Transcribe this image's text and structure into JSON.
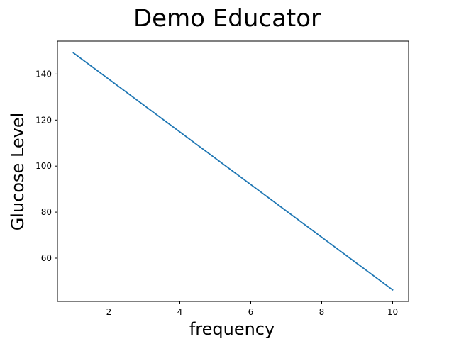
{
  "chart_data": {
    "type": "line",
    "title": "Demo Educator",
    "xlabel": "frequency",
    "ylabel": "Glucose Level",
    "xlim": [
      0.55,
      10.45
    ],
    "ylim": [
      41.2,
      154.3
    ],
    "xticks": [
      2,
      4,
      6,
      8,
      10
    ],
    "yticks": [
      60,
      80,
      100,
      120,
      140
    ],
    "grid": false,
    "series": [
      {
        "color": "#1f77b4",
        "x": [
          1,
          10
        ],
        "y": [
          149.2,
          46.2
        ]
      }
    ]
  }
}
